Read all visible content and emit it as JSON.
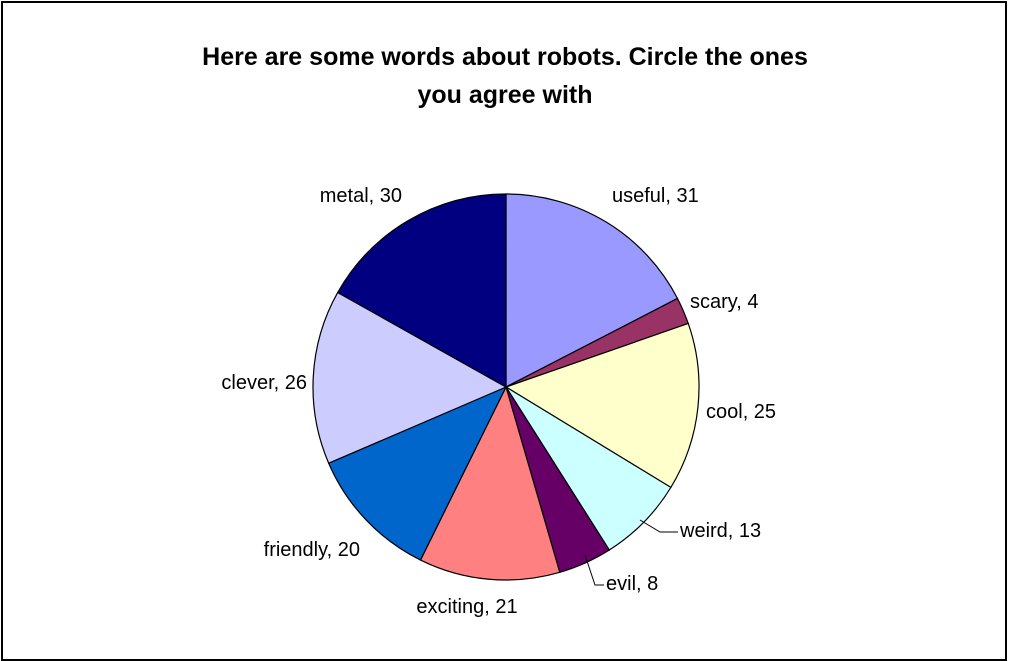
{
  "chart_data": {
    "type": "pie",
    "title_lines": [
      "Here are some words about robots.  Circle the ones",
      "you agree with"
    ],
    "slices": [
      {
        "label": "useful",
        "value": 31,
        "color": "#9999FF"
      },
      {
        "label": "scary",
        "value": 4,
        "color": "#993366"
      },
      {
        "label": "cool",
        "value": 25,
        "color": "#FFFFCC"
      },
      {
        "label": "weird",
        "value": 13,
        "color": "#CCFFFF"
      },
      {
        "label": "evil",
        "value": 8,
        "color": "#660066"
      },
      {
        "label": "exciting",
        "value": 21,
        "color": "#FF8080"
      },
      {
        "label": "friendly",
        "value": 20,
        "color": "#0066CC"
      },
      {
        "label": "clever",
        "value": 26,
        "color": "#CCCCFF"
      },
      {
        "label": "metal",
        "value": 30,
        "color": "#000080"
      }
    ]
  }
}
